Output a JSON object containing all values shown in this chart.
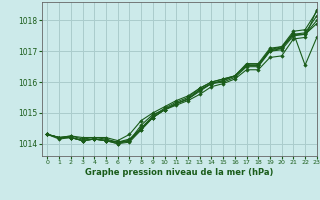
{
  "title": "Graphe pression niveau de la mer (hPa)",
  "bg_color": "#cceaea",
  "grid_color": "#aacccc",
  "line_color": "#1a5c1a",
  "marker_color": "#1a5c1a",
  "xlim": [
    -0.5,
    23
  ],
  "ylim": [
    1013.6,
    1018.6
  ],
  "yticks": [
    1014,
    1015,
    1016,
    1017,
    1018
  ],
  "xticks": [
    0,
    1,
    2,
    3,
    4,
    5,
    6,
    7,
    8,
    9,
    10,
    11,
    12,
    13,
    14,
    15,
    16,
    17,
    18,
    19,
    20,
    21,
    22,
    23
  ],
  "series": [
    [
      1014.3,
      1014.2,
      1014.25,
      1014.2,
      1014.2,
      1014.2,
      1014.1,
      1014.3,
      1014.75,
      1015.0,
      1015.2,
      1015.4,
      1015.55,
      1015.8,
      1016.0,
      1016.1,
      1016.2,
      1016.55,
      1016.55,
      1017.05,
      1017.15,
      1017.55,
      1017.55,
      1017.9
    ],
    [
      1014.3,
      1014.2,
      1014.25,
      1014.15,
      1014.2,
      1014.15,
      1014.05,
      1014.1,
      1014.5,
      1014.85,
      1015.1,
      1015.3,
      1015.45,
      1015.7,
      1015.95,
      1016.05,
      1016.2,
      1016.55,
      1016.55,
      1017.05,
      1017.1,
      1017.6,
      1016.55,
      1017.45
    ],
    [
      1014.3,
      1014.2,
      1014.2,
      1014.1,
      1014.15,
      1014.1,
      1014.0,
      1014.05,
      1014.45,
      1014.85,
      1015.1,
      1015.3,
      1015.45,
      1015.75,
      1015.95,
      1016.05,
      1016.2,
      1016.55,
      1016.55,
      1017.0,
      1017.1,
      1017.55,
      1017.6,
      1018.15
    ],
    [
      1014.3,
      1014.2,
      1014.2,
      1014.1,
      1014.15,
      1014.1,
      1014.05,
      1014.15,
      1014.5,
      1014.9,
      1015.15,
      1015.35,
      1015.5,
      1015.8,
      1016.0,
      1016.1,
      1016.2,
      1016.6,
      1016.6,
      1017.1,
      1017.15,
      1017.65,
      1017.7,
      1018.3
    ],
    [
      1014.3,
      1014.2,
      1014.2,
      1014.1,
      1014.15,
      1014.1,
      1014.05,
      1014.1,
      1014.45,
      1014.85,
      1015.1,
      1015.3,
      1015.45,
      1015.75,
      1015.95,
      1016.0,
      1016.15,
      1016.5,
      1016.5,
      1017.0,
      1017.05,
      1017.5,
      1017.55,
      1018.0
    ]
  ],
  "series_outlier": [
    1014.3,
    1014.15,
    1014.2,
    1014.1,
    1014.15,
    1014.1,
    1014.0,
    1014.1,
    1014.6,
    1014.95,
    1015.1,
    1015.25,
    1015.4,
    1015.6,
    1015.85,
    1015.95,
    1016.1,
    1016.4,
    1016.4,
    1016.8,
    1016.85,
    1017.4,
    1017.45,
    1018.35
  ]
}
